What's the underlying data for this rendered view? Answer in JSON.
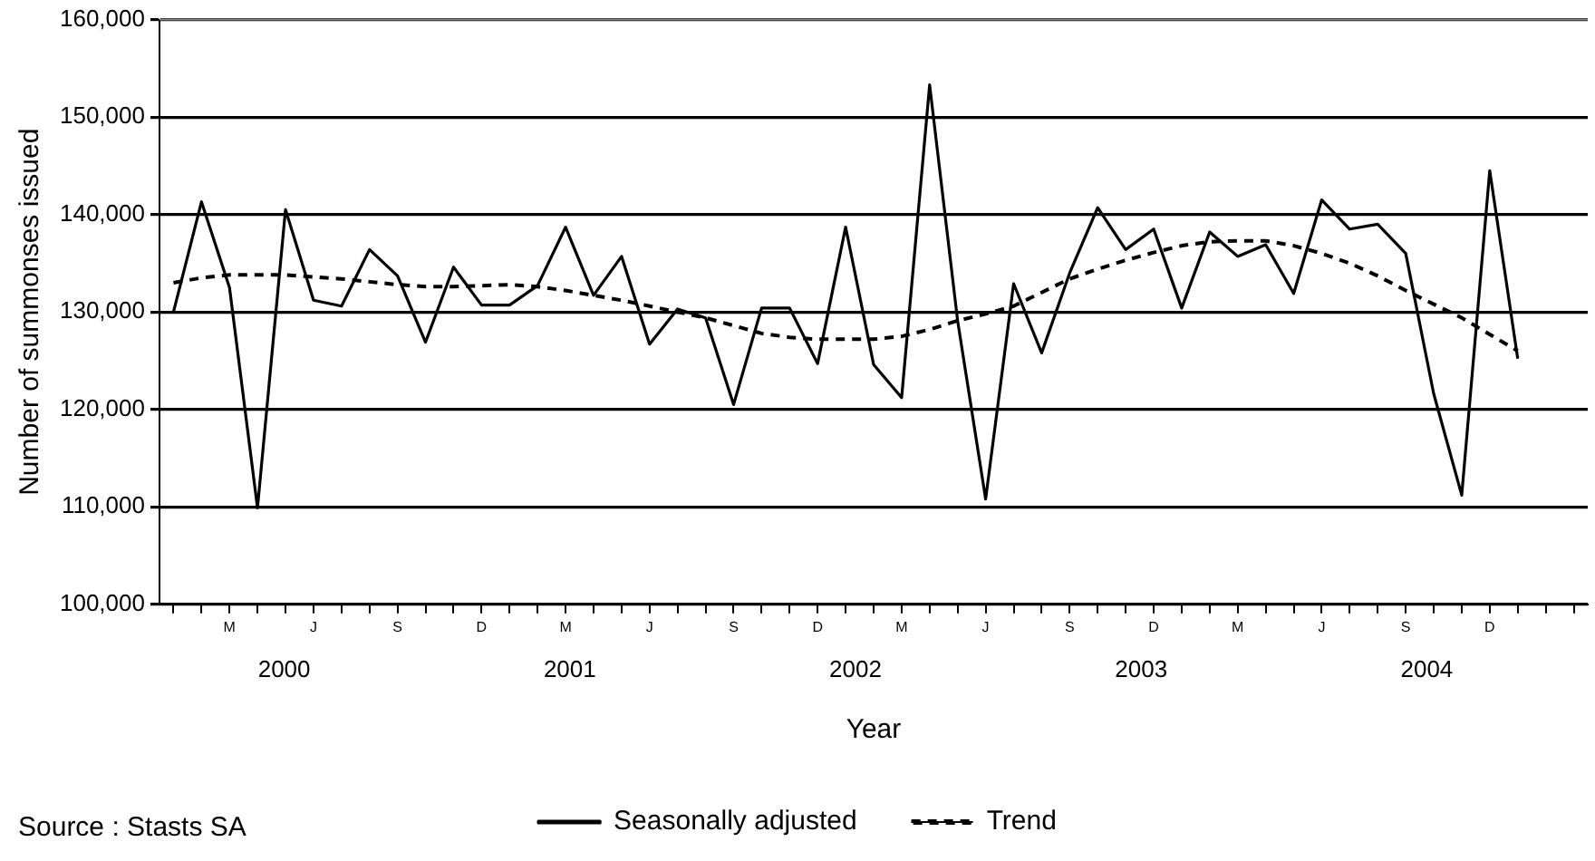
{
  "chart_data": {
    "type": "line",
    "xlabel": "Year",
    "ylabel": "Number of summonses issued",
    "categories": [
      null,
      null,
      "M",
      null,
      null,
      "J",
      null,
      null,
      "S",
      null,
      null,
      "D",
      null,
      null,
      "M",
      null,
      null,
      "J",
      null,
      null,
      "S",
      null,
      null,
      "D",
      null,
      null,
      "M",
      null,
      null,
      "J",
      null,
      null,
      "S",
      null,
      null,
      "D",
      null,
      null,
      "M",
      null,
      null,
      "J",
      null,
      null,
      "S",
      null,
      null,
      "D",
      null,
      null,
      null
    ],
    "series": [
      {
        "name": "Seasonally adjusted",
        "color": "#000000",
        "line_style": "solid",
        "values": [
          130000,
          141300,
          132500,
          109900,
          140500,
          131200,
          130600,
          136400,
          133700,
          126900,
          134600,
          130700,
          130700,
          132700,
          138700,
          131700,
          135700,
          126700,
          130300,
          129400,
          120500,
          130400,
          130400,
          124700,
          138700,
          124600,
          121200,
          153300,
          129100,
          110800,
          132900,
          125800,
          134000,
          140700,
          136400,
          138500,
          130400,
          138200,
          135700,
          136900,
          131900,
          141500,
          138500,
          139000,
          136000,
          121600,
          111200,
          144500,
          125200,
          null,
          null
        ]
      },
      {
        "name": "Trend",
        "color": "#000000",
        "line_style": "dashed",
        "values": [
          133000,
          133500,
          133800,
          133800,
          133800,
          133600,
          133400,
          133100,
          132800,
          132600,
          132600,
          132700,
          132800,
          132600,
          132200,
          131700,
          131200,
          130600,
          130000,
          129400,
          128600,
          127800,
          127400,
          127200,
          127200,
          127200,
          127500,
          128200,
          129100,
          129800,
          130600,
          132000,
          133400,
          134400,
          135300,
          136100,
          136800,
          137200,
          137300,
          137300,
          136800,
          136000,
          135000,
          133700,
          132200,
          130800,
          129400,
          127700,
          126000,
          null,
          null
        ]
      }
    ],
    "ylim": [
      100000,
      160000
    ],
    "yticks": [
      {
        "value": 100000,
        "label": "100,000"
      },
      {
        "value": 110000,
        "label": "110,000"
      },
      {
        "value": 120000,
        "label": "120,000"
      },
      {
        "value": 130000,
        "label": "130,000"
      },
      {
        "value": 140000,
        "label": "140,000"
      },
      {
        "value": 150000,
        "label": "150,000"
      },
      {
        "value": 160000,
        "label": "160,000"
      }
    ],
    "grid": "y",
    "legend": "bottom",
    "marker": "none",
    "annotations": [
      "Source : Stasts SA",
      "2000",
      "2001",
      "2002",
      "2003",
      "2004"
    ]
  }
}
